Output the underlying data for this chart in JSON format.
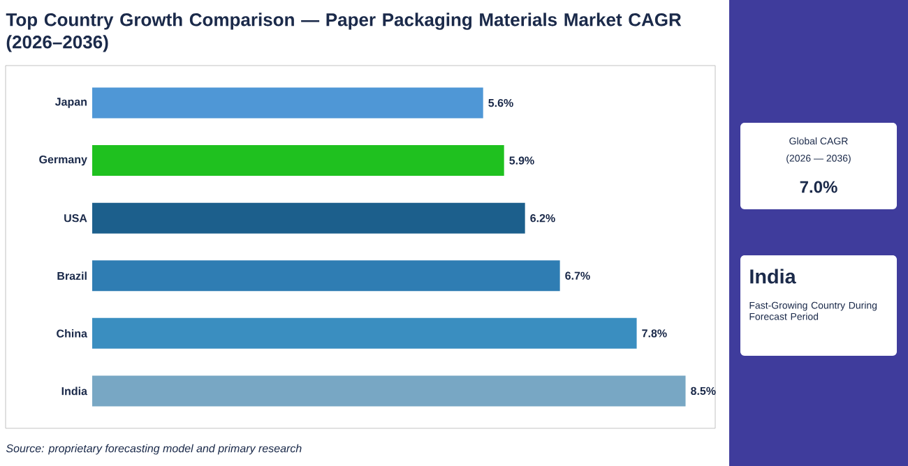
{
  "chart_data": {
    "type": "bar",
    "orientation": "horizontal",
    "title": "Top Country Growth Comparison — Paper Packaging Materials Market CAGR (2026–2036)",
    "categories": [
      "Japan",
      "Germany",
      "USA",
      "Brazil",
      "China",
      "India"
    ],
    "values": [
      5.6,
      5.9,
      6.2,
      6.7,
      7.8,
      8.5
    ],
    "colors": [
      "#4f97d6",
      "#1fc11f",
      "#1c5f8c",
      "#2f7db3",
      "#3a8ec0",
      "#78a7c4"
    ],
    "value_labels": [
      "5.6%",
      "5.9%",
      "6.2%",
      "6.7%",
      "7.8%",
      "8.5%"
    ],
    "tick_labels": "y",
    "annotations": [
      "Source: proprietary forecasting model and primary research",
      "Global CAGR",
      "(2026 — 2036)",
      "7.0%",
      "India",
      "Fast-Growing Country During Forecast Period"
    ]
  }
}
